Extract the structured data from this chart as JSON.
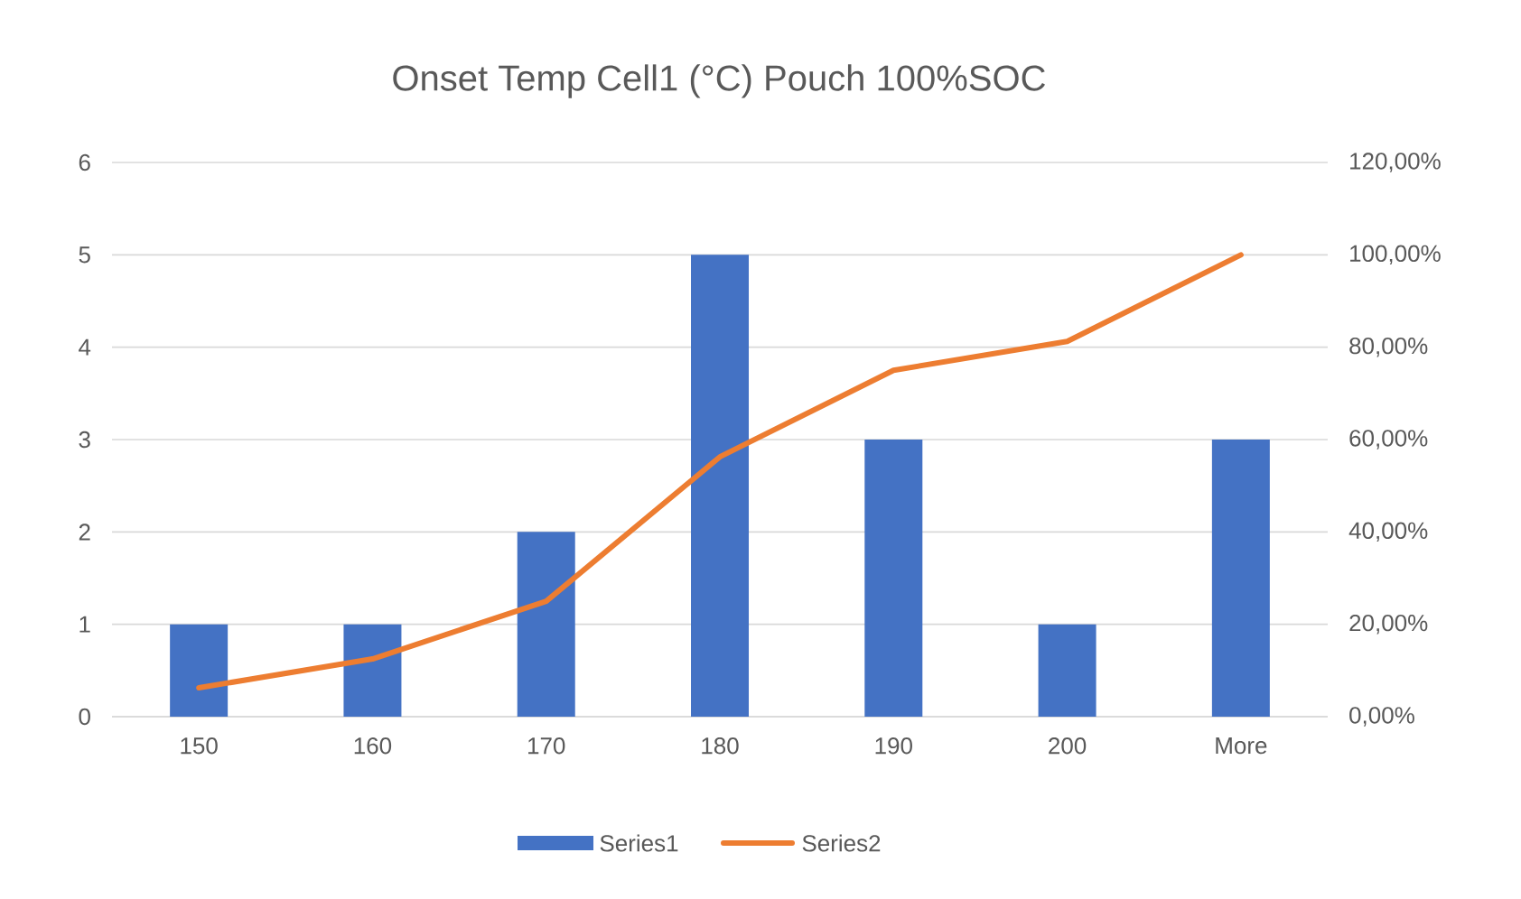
{
  "chart_data": {
    "type": "bar",
    "title": "Onset Temp Cell1 (°C) Pouch 100%SOC",
    "categories": [
      "150",
      "160",
      "170",
      "180",
      "190",
      "200",
      "More"
    ],
    "series": [
      {
        "name": "Series1",
        "color": "#4472c4",
        "values": [
          1,
          1,
          2,
          5,
          3,
          1,
          3
        ]
      },
      {
        "name": "Series2",
        "type": "line",
        "axis": "y2",
        "color": "#ed7d31",
        "values": [
          6.25,
          12.5,
          25,
          56.25,
          75,
          81.25,
          100
        ]
      }
    ],
    "ylim": [
      0,
      6
    ],
    "yticks": [
      0,
      1,
      2,
      3,
      4,
      5,
      6
    ],
    "y2lim": [
      0,
      120
    ],
    "y2ticks": [
      {
        "value": 0,
        "label": "0,00%"
      },
      {
        "value": 20,
        "label": "20,00%"
      },
      {
        "value": 40,
        "label": "40,00%"
      },
      {
        "value": 60,
        "label": "60,00%"
      },
      {
        "value": 80,
        "label": "80,00%"
      },
      {
        "value": 100,
        "label": "100,00%"
      },
      {
        "value": 120,
        "label": "120,00%"
      }
    ],
    "grid": "y",
    "legend": "bottom"
  }
}
